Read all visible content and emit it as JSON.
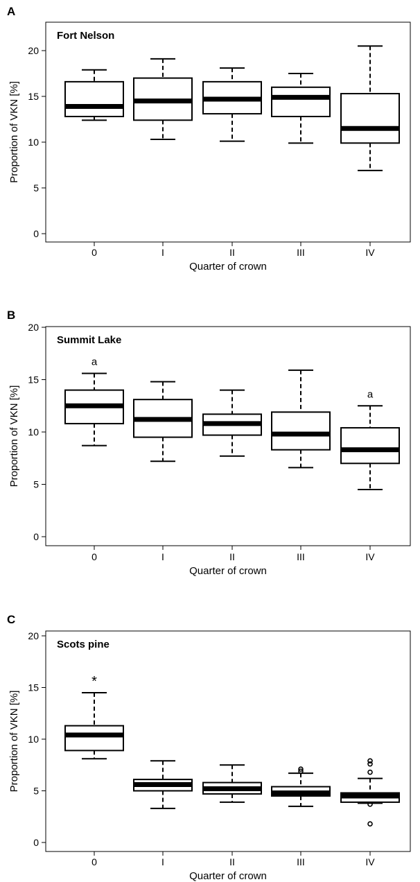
{
  "chart_data": [
    {
      "type": "box",
      "panel_letter": "A",
      "title": "Fort Nelson",
      "xlabel": "Quarter of crown",
      "ylabel": "Proportion of VKN [%]",
      "ylim": [
        -0.5,
        21.5
      ],
      "yticks": [
        0,
        5,
        10,
        15,
        20
      ],
      "categories": [
        "0",
        "I",
        "II",
        "III",
        "IV"
      ],
      "boxes": [
        {
          "min": 12.4,
          "q1": 12.8,
          "median": 13.9,
          "q3": 16.6,
          "max": 17.9,
          "outliers": [],
          "annotation": ""
        },
        {
          "min": 10.3,
          "q1": 12.4,
          "median": 14.5,
          "q3": 17.0,
          "max": 19.1,
          "outliers": [],
          "annotation": ""
        },
        {
          "min": 10.1,
          "q1": 13.1,
          "median": 14.7,
          "q3": 16.6,
          "max": 18.1,
          "outliers": [],
          "annotation": ""
        },
        {
          "min": 9.9,
          "q1": 12.8,
          "median": 14.9,
          "q3": 16.0,
          "max": 17.5,
          "outliers": [],
          "annotation": ""
        },
        {
          "min": 6.9,
          "q1": 9.9,
          "median": 11.5,
          "q3": 15.3,
          "max": 20.5,
          "outliers": [],
          "annotation": ""
        }
      ]
    },
    {
      "type": "box",
      "panel_letter": "B",
      "title": "Summit Lake",
      "xlabel": "Quarter of crown",
      "ylabel": "Proportion of VKN [%]",
      "ylim": [
        -0.5,
        20.5
      ],
      "yticks": [
        0,
        5,
        10,
        15,
        20
      ],
      "categories": [
        "0",
        "I",
        "II",
        "III",
        "IV"
      ],
      "boxes": [
        {
          "min": 8.7,
          "q1": 10.8,
          "median": 12.5,
          "q3": 14.0,
          "max": 15.6,
          "outliers": [],
          "annotation": "a"
        },
        {
          "min": 7.2,
          "q1": 9.5,
          "median": 11.2,
          "q3": 13.1,
          "max": 14.8,
          "outliers": [],
          "annotation": ""
        },
        {
          "min": 7.7,
          "q1": 9.7,
          "median": 10.8,
          "q3": 11.7,
          "max": 14.0,
          "outliers": [],
          "annotation": ""
        },
        {
          "min": 6.6,
          "q1": 8.3,
          "median": 9.8,
          "q3": 11.9,
          "max": 15.9,
          "outliers": [],
          "annotation": ""
        },
        {
          "min": 4.5,
          "q1": 7.0,
          "median": 8.3,
          "q3": 10.4,
          "max": 12.5,
          "outliers": [],
          "annotation": "a"
        }
      ]
    },
    {
      "type": "box",
      "panel_letter": "C",
      "title": "Scots pine",
      "xlabel": "Quarter of crown",
      "ylabel": "Proportion of VKN [%]",
      "ylim": [
        -0.5,
        20.5
      ],
      "yticks": [
        0,
        5,
        10,
        15,
        20
      ],
      "categories": [
        "0",
        "I",
        "II",
        "III",
        "IV"
      ],
      "boxes": [
        {
          "min": 8.1,
          "q1": 8.9,
          "median": 10.4,
          "q3": 11.3,
          "max": 14.5,
          "outliers": [],
          "annotation": "*"
        },
        {
          "min": 3.3,
          "q1": 5.0,
          "median": 5.6,
          "q3": 6.1,
          "max": 7.9,
          "outliers": [],
          "annotation": ""
        },
        {
          "min": 3.9,
          "q1": 4.7,
          "median": 5.2,
          "q3": 5.8,
          "max": 7.5,
          "outliers": [],
          "annotation": ""
        },
        {
          "min": 3.5,
          "q1": 4.5,
          "median": 4.8,
          "q3": 5.4,
          "max": 6.7,
          "outliers": [
            7.1,
            6.9
          ],
          "annotation": ""
        },
        {
          "min": 3.8,
          "q1": 3.9,
          "median": 4.5,
          "q3": 4.8,
          "max": 6.2,
          "outliers": [
            7.9,
            7.6,
            6.8,
            1.8,
            3.7
          ],
          "annotation": ""
        }
      ]
    }
  ]
}
